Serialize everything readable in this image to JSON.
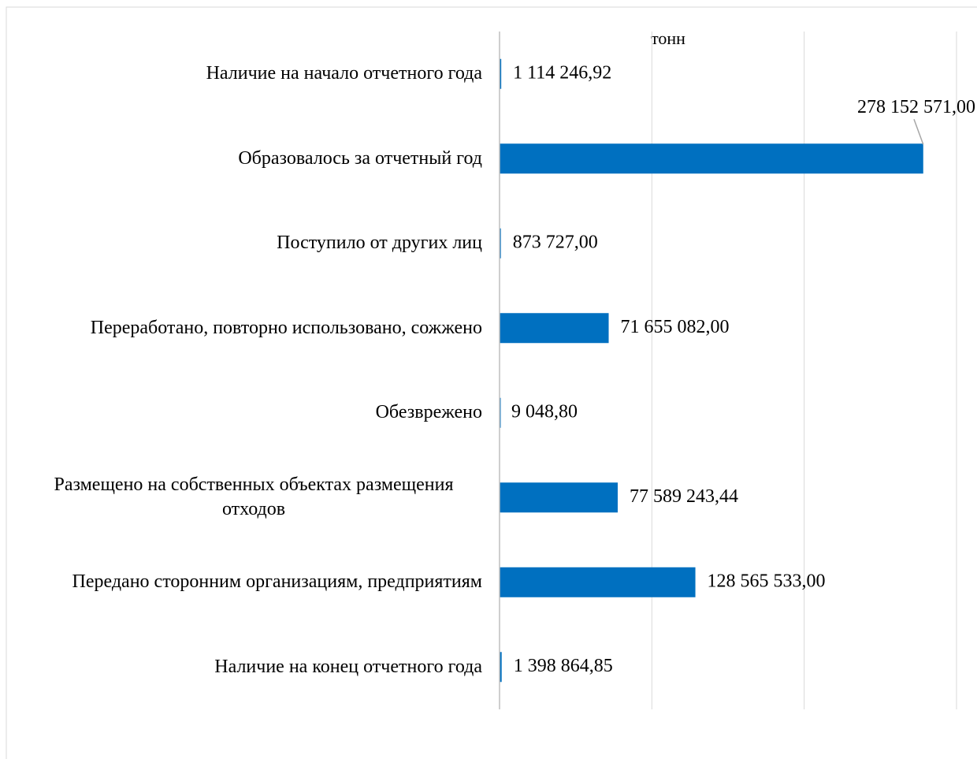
{
  "chart_data": {
    "type": "bar",
    "orientation": "horizontal",
    "xlabel": "тонн",
    "categories": [
      "Наличие на начало отчетного года",
      "Образовалось за отчетный год",
      "Поступило  от других лиц",
      "Переработано, повторно использовано, сожжено",
      "Обезврежено",
      "Размещено на собственных объектах размещения отходов",
      "Передано сторонним организациям, предприятиям",
      "Наличие на конец отчетного года"
    ],
    "values": [
      1114246.92,
      278152571.0,
      873727.0,
      71655082.0,
      9048.8,
      77589243.44,
      128565533.0,
      1398864.85
    ],
    "value_labels": [
      "1 114 246,92",
      "278 152 571,00",
      "873 727,00",
      "71 655 082,00",
      "9 048,80",
      "77 589 243,44",
      "128 565 533,00",
      "1 398 864,85"
    ],
    "color": "#0070c0",
    "xlim": [
      0,
      300000000
    ],
    "xticks": [
      0,
      100000000,
      200000000,
      300000000
    ],
    "grid": true
  }
}
